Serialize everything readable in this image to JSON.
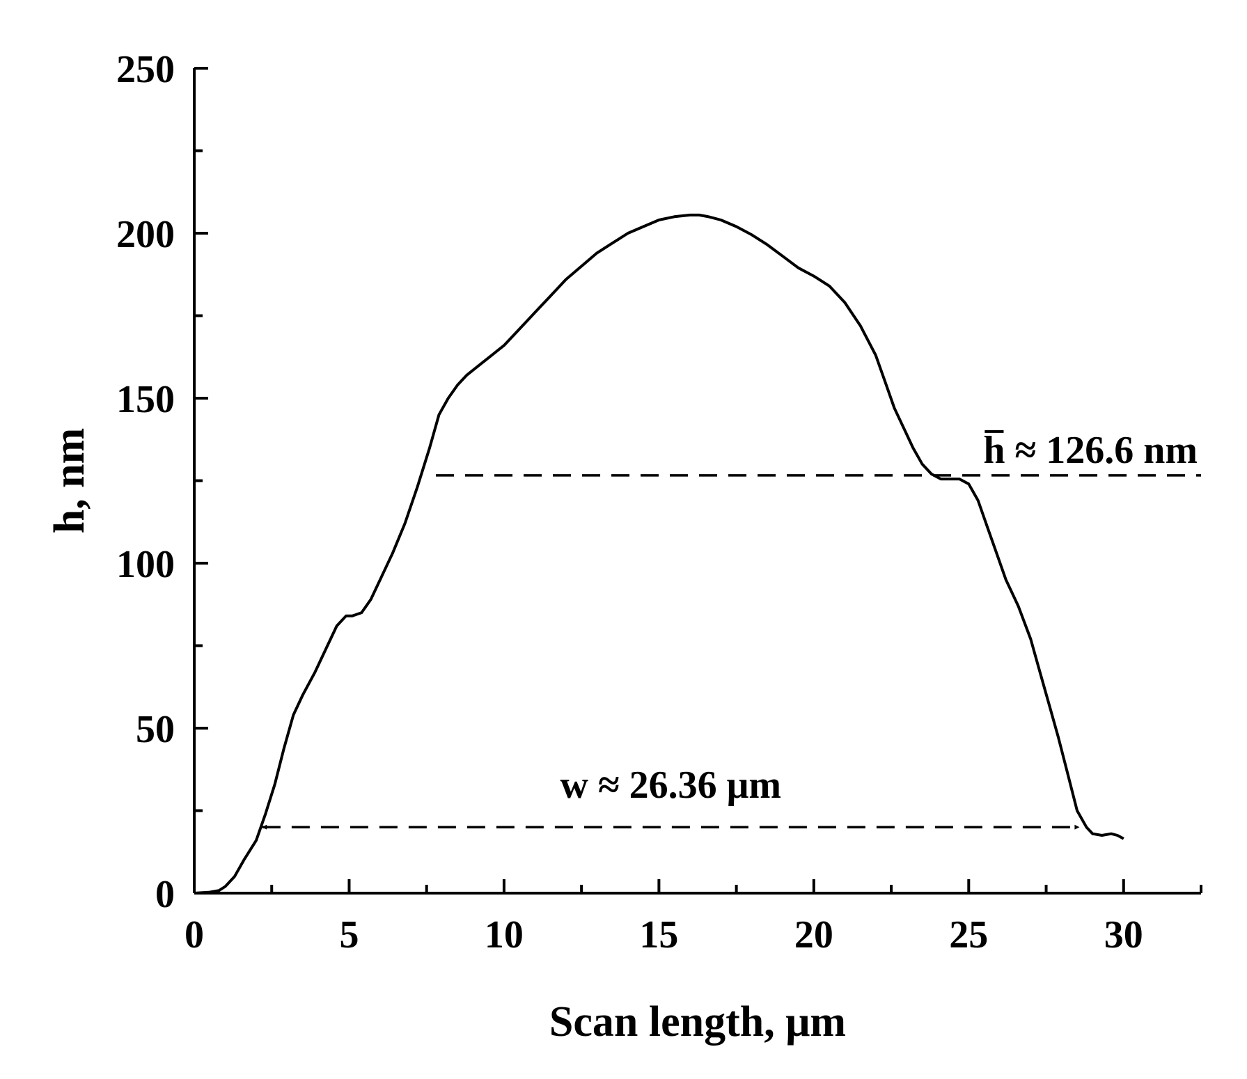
{
  "chart_data": {
    "type": "line",
    "xlabel": "Scan length, μm",
    "ylabel": "h, nm",
    "xlim": [
      0,
      32.5
    ],
    "ylim": [
      0,
      250
    ],
    "x_ticks": [
      "0",
      "5",
      "10",
      "15",
      "20",
      "25",
      "30"
    ],
    "y_ticks": [
      "0",
      "50",
      "100",
      "150",
      "200",
      "250"
    ],
    "x_tick_values": [
      0,
      5,
      10,
      15,
      20,
      25,
      30
    ],
    "y_tick_values": [
      0,
      50,
      100,
      150,
      200,
      250
    ],
    "x_minor_step": 2.5,
    "y_minor_step": 25,
    "grid": false,
    "series": [
      {
        "x": [
          0,
          0.5,
          0.8,
          1.0,
          1.3,
          1.6,
          2.0,
          2.3,
          2.6,
          2.9,
          3.2,
          3.5,
          3.9,
          4.3,
          4.6,
          4.9,
          5.1,
          5.4,
          5.7,
          6.0,
          6.4,
          6.8,
          7.2,
          7.6,
          7.9,
          8.2,
          8.5,
          8.8,
          9.2,
          9.6,
          10.0,
          10.5,
          11.0,
          11.5,
          12.0,
          12.5,
          13.0,
          13.5,
          14.0,
          14.5,
          15.0,
          15.5,
          16.0,
          16.3,
          16.6,
          17.0,
          17.5,
          18.0,
          18.5,
          19.0,
          19.5,
          20.0,
          20.5,
          21.0,
          21.5,
          22.0,
          22.3,
          22.6,
          22.9,
          23.2,
          23.5,
          23.8,
          24.1,
          24.4,
          24.7,
          25.0,
          25.3,
          25.6,
          25.9,
          26.2,
          26.6,
          27.0,
          27.3,
          27.6,
          27.9,
          28.2,
          28.5,
          28.8,
          29.0,
          29.3,
          29.6,
          29.8,
          30.0
        ],
        "y": [
          0,
          0.3,
          0.8,
          2,
          5,
          10,
          16,
          24,
          33,
          44,
          54,
          60,
          67,
          75,
          81,
          84,
          84,
          85,
          89,
          95,
          103,
          112,
          123,
          135,
          145,
          150,
          154,
          157,
          160,
          163,
          166,
          171,
          176,
          181,
          186,
          190,
          194,
          197,
          200,
          202,
          204,
          205,
          205.5,
          205.5,
          205,
          204,
          202,
          199.5,
          196.5,
          193,
          189.5,
          187,
          184,
          179,
          172,
          163,
          155,
          147,
          141,
          135,
          130,
          127,
          125.5,
          125.5,
          125.5,
          124,
          119,
          111,
          103,
          95,
          87,
          77,
          67,
          57,
          47,
          36,
          25,
          20,
          18,
          17.5,
          18,
          17.5,
          16.5
        ]
      }
    ],
    "annotations": [
      {
        "kind": "horizontal-dashed-line",
        "label_text": "h",
        "label_value": "≈ 126.6 nm",
        "y": 126.6,
        "x_start": 7.8,
        "x_end": 32.5
      },
      {
        "kind": "double-arrow-dashed",
        "label_text": "w ≈ 26.36 μm",
        "y": 20,
        "x_start": 2.2,
        "x_end": 28.56
      }
    ]
  }
}
